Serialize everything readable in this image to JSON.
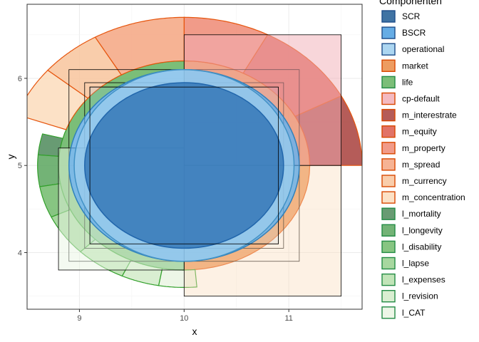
{
  "chart_data": {
    "type": "sunburst-ellipses",
    "xlabel": "x",
    "ylabel": "y",
    "xlim": [
      8.5,
      11.7
    ],
    "ylim": [
      3.35,
      6.85
    ],
    "x_ticks": [
      9,
      10,
      11
    ],
    "y_ticks": [
      4,
      5,
      6
    ],
    "grid": true,
    "legend": {
      "title": "Componenten",
      "position": "right",
      "items": [
        {
          "label": "SCR",
          "color": "#1f5a93"
        },
        {
          "label": "BSCR",
          "color": "#4a9ee0"
        },
        {
          "label": "operational",
          "color": "#9ecfee"
        },
        {
          "label": "market",
          "color": "#ea8b45"
        },
        {
          "label": "life",
          "color": "#64b360"
        },
        {
          "label": "cp-default",
          "color": "#f2aeb6"
        },
        {
          "label": "m_interestrate",
          "color": "#a8403c"
        },
        {
          "label": "m_equity",
          "color": "#dc5a4c"
        },
        {
          "label": "m_property",
          "color": "#ef8a74"
        },
        {
          "label": "m_spread",
          "color": "#f5a681"
        },
        {
          "label": "m_currency",
          "color": "#f8c49c"
        },
        {
          "label": "m_concentration",
          "color": "#fbdcbc"
        },
        {
          "label": "l_mortality",
          "color": "#4e8a5a"
        },
        {
          "label": "l_longevity",
          "color": "#5aa65e"
        },
        {
          "label": "l_disability",
          "color": "#72bb6c"
        },
        {
          "label": "l_lapse",
          "color": "#98d08e"
        },
        {
          "label": "l_expenses",
          "color": "#b6dfab"
        },
        {
          "label": "l_revision",
          "color": "#d2ebc9"
        },
        {
          "label": "l_CAT",
          "color": "#eaf5e3"
        }
      ]
    },
    "ellipses": [
      {
        "name": "SCR",
        "cx": 10,
        "cy": 5,
        "rx": 0.95,
        "ry": 0.95,
        "fill": "#2166ac",
        "stroke": "#2166ac"
      },
      {
        "name": "BSCR",
        "cx": 10,
        "cy": 5,
        "rx": 1.1,
        "ry": 1.1,
        "fill": "#4a9ee0",
        "stroke": "#3182bd"
      },
      {
        "name": "operational",
        "cx": 10,
        "cy": 5,
        "rx": 1.05,
        "ry": 1.1,
        "fill": "#9ecfee",
        "stroke": "#4292c6"
      }
    ],
    "sectors": [
      {
        "name": "market",
        "r0": 1.1,
        "r1": 1.2,
        "a0": -90,
        "a1": 90,
        "fill": "#ea8b45"
      },
      {
        "name": "life",
        "r0": 1.1,
        "r1": 1.2,
        "a0": 90,
        "a1": 270,
        "fill": "#64b360"
      },
      {
        "name": "m_interestrate",
        "r0": 1.2,
        "r1": 1.7,
        "a0": 0,
        "a1": 28,
        "fill": "#a8403c"
      },
      {
        "name": "m_equity",
        "r0": 1.2,
        "r1": 1.7,
        "a0": 28,
        "a1": 62,
        "fill": "#dc5a4c"
      },
      {
        "name": "m_property",
        "r0": 1.2,
        "r1": 1.7,
        "a0": 62,
        "a1": 90,
        "fill": "#ef8a74"
      },
      {
        "name": "m_spread",
        "r0": 1.2,
        "r1": 1.7,
        "a0": 90,
        "a1": 120,
        "fill": "#f5a681"
      },
      {
        "name": "m_currency",
        "r0": 1.2,
        "r1": 1.7,
        "a0": 120,
        "a1": 140,
        "fill": "#f8c49c"
      },
      {
        "name": "m_concentration",
        "r0": 1.2,
        "r1": 1.7,
        "a0": 140,
        "a1": 160,
        "fill": "#fbdcbc"
      },
      {
        "name": "l_mortality",
        "r0": 1.2,
        "r1": 1.4,
        "a0": 165,
        "a1": 175,
        "fill": "#4e8a5a"
      },
      {
        "name": "l_longevity",
        "r0": 1.2,
        "r1": 1.4,
        "a0": 175,
        "a1": 190,
        "fill": "#5aa65e"
      },
      {
        "name": "l_disability",
        "r0": 1.2,
        "r1": 1.4,
        "a0": 190,
        "a1": 205,
        "fill": "#72bb6c"
      },
      {
        "name": "l_lapse",
        "r0": 1.2,
        "r1": 1.4,
        "a0": 205,
        "a1": 225,
        "fill": "#98d08e"
      },
      {
        "name": "l_expenses",
        "r0": 1.2,
        "r1": 1.4,
        "a0": 225,
        "a1": 245,
        "fill": "#b6dfab"
      },
      {
        "name": "l_revision",
        "r0": 1.2,
        "r1": 1.4,
        "a0": 245,
        "a1": 260,
        "fill": "#d2ebc9"
      },
      {
        "name": "l_CAT",
        "r0": 1.2,
        "r1": 1.4,
        "a0": 260,
        "a1": 275,
        "fill": "#eaf5e3"
      }
    ],
    "rectangles": [
      {
        "x0": 9.05,
        "x1": 10.95,
        "y0": 4.05,
        "y1": 5.95,
        "fill": "#9ecfee",
        "opacity": 0.0
      },
      {
        "x0": 8.9,
        "x1": 11.1,
        "y0": 3.9,
        "y1": 6.1,
        "fill": "#ffffff",
        "opacity": 0.0
      },
      {
        "x0": 9.1,
        "x1": 10.9,
        "y0": 4.1,
        "y1": 5.9,
        "fill": "#9ecfee",
        "opacity": 0.2
      },
      {
        "x0": 10,
        "x1": 11.5,
        "y0": 5,
        "y1": 6.5,
        "fill": "#f2aeb6",
        "opacity": 0.5
      },
      {
        "x0": 8.8,
        "x1": 10,
        "y0": 3.8,
        "y1": 5.2,
        "fill": "#eaf5e3",
        "opacity": 0.5
      },
      {
        "x0": 10,
        "x1": 11.5,
        "y0": 3.5,
        "y1": 5,
        "fill": "#fbdcbc",
        "opacity": 0.4
      }
    ]
  }
}
